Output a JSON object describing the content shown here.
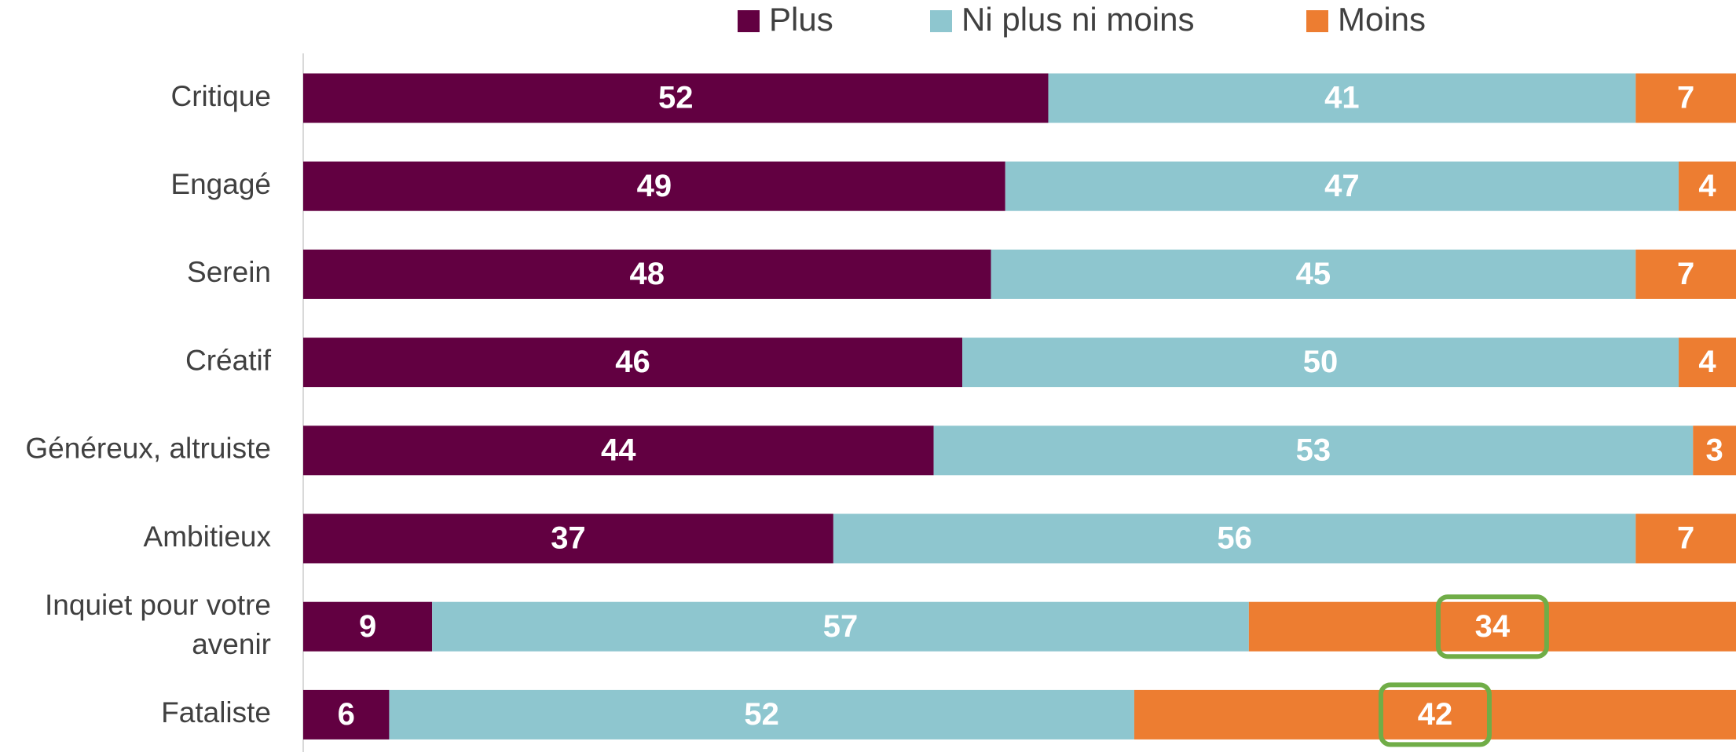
{
  "chart_data": {
    "type": "stacked-bar-horizontal",
    "categories": [
      "Critique",
      "Engagé",
      "Serein",
      "Créatif",
      "Généreux, altruiste",
      "Ambitieux",
      "Inquiet pour votre avenir",
      "Fataliste"
    ],
    "series": [
      {
        "name": "Plus",
        "color": "#620041",
        "values": [
          52,
          49,
          48,
          46,
          44,
          37,
          9,
          6
        ]
      },
      {
        "name": "Ni plus ni moins",
        "color": "#8ec6cf",
        "values": [
          41,
          47,
          45,
          50,
          53,
          56,
          57,
          52
        ]
      },
      {
        "name": "Moins",
        "color": "#ed7d31",
        "values": [
          7,
          4,
          7,
          4,
          3,
          7,
          34,
          42
        ],
        "highlight": [
          false,
          false,
          false,
          false,
          false,
          false,
          true,
          true
        ],
        "highlight_color": "#70ad47"
      }
    ],
    "xlim": [
      0,
      100
    ],
    "legend": "top"
  }
}
